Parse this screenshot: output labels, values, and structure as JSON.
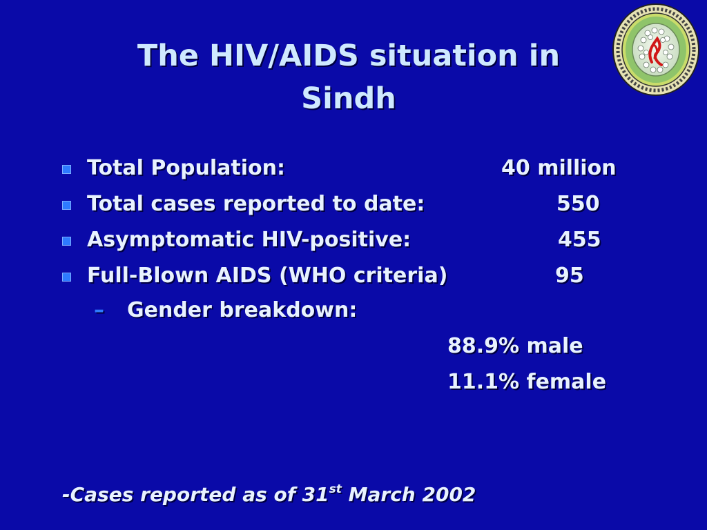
{
  "slide": {
    "title_line1": "The HIV/AIDS situation in",
    "title_line2": "Sindh",
    "logo_icon": "hiv-virus-emblem-icon",
    "bullets": [
      {
        "label": "Total Population:",
        "value": "40 million"
      },
      {
        "label": "Total cases reported to date:",
        "value": "550"
      },
      {
        "label": "Asymptomatic HIV-positive:",
        "value": "455"
      },
      {
        "label": "Full-Blown AIDS (WHO criteria)",
        "value": "95"
      }
    ],
    "sub_bullet": {
      "dash": "–",
      "label": "Gender breakdown:"
    },
    "gender": {
      "male": "88.9% male",
      "female": "11.1% female"
    },
    "footnote": {
      "prefix": "-Cases reported as of 31",
      "sup": "st",
      "suffix": " March 2002"
    },
    "colors": {
      "background": "#0a0aa8",
      "title": "#cfe9ff",
      "text": "#e8f2ff",
      "bullet": "#2e7bff"
    }
  }
}
